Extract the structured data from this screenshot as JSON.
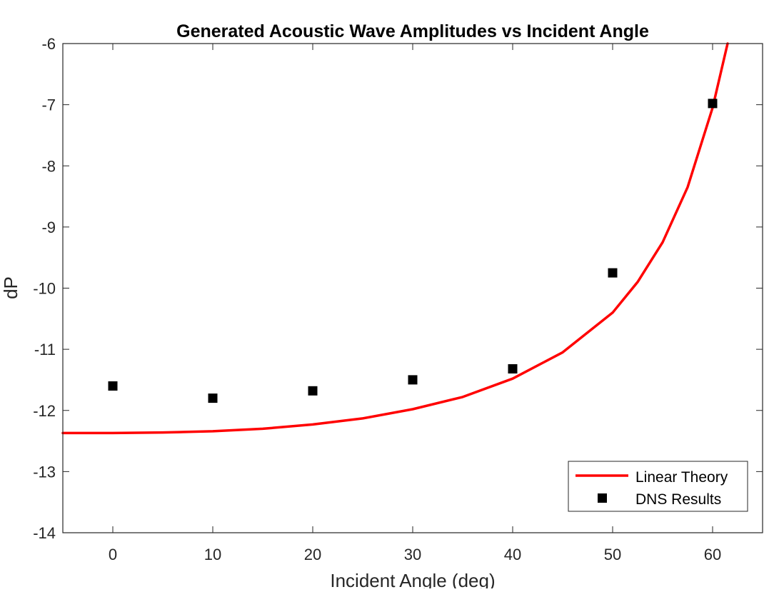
{
  "chart_data": {
    "type": "line",
    "title": "Generated Acoustic Wave Amplitudes vs Incident Angle",
    "xlabel": "Incident Angle (deg)",
    "ylabel": "dP",
    "xlim": [
      -5,
      65
    ],
    "ylim": [
      -14,
      -6
    ],
    "xticks": [
      0,
      10,
      20,
      30,
      40,
      50,
      60
    ],
    "yticks": [
      -14,
      -13,
      -12,
      -11,
      -10,
      -9,
      -8,
      -7,
      -6
    ],
    "grid": false,
    "legend_position": "bottom-right",
    "series": [
      {
        "name": "Linear Theory",
        "style": "line",
        "color": "#ff0000",
        "x": [
          -5,
          0,
          5,
          10,
          15,
          20,
          25,
          30,
          35,
          40,
          45,
          50,
          52.5,
          55,
          57.5,
          60,
          61.5
        ],
        "y": [
          -12.37,
          -12.37,
          -12.36,
          -12.34,
          -12.3,
          -12.23,
          -12.13,
          -11.98,
          -11.78,
          -11.48,
          -11.05,
          -10.4,
          -9.9,
          -9.25,
          -8.35,
          -7.05,
          -6.0
        ]
      },
      {
        "name": "DNS Results",
        "style": "markers",
        "marker": "square",
        "color": "#000000",
        "x": [
          0,
          10,
          20,
          30,
          40,
          50,
          60
        ],
        "y": [
          -11.6,
          -11.8,
          -11.68,
          -11.5,
          -11.32,
          -9.75,
          -6.98
        ]
      }
    ]
  }
}
